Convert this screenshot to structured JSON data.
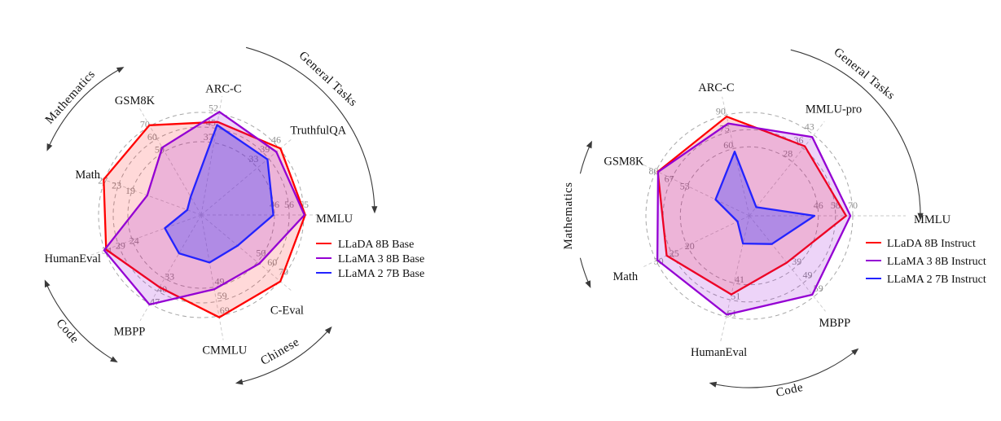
{
  "figure": {
    "description": "Benchmark radar comparison of LLaDA vs LLaMA models"
  },
  "chart_data": [
    {
      "type": "radar",
      "title": "",
      "grid": "dashed",
      "legend_position": "right",
      "ring_fractions": [
        0.7143,
        0.8571,
        1.0
      ],
      "start_angle_deg": 80,
      "angle_step_deg": 40,
      "axes": [
        {
          "label": "ARC-C",
          "max": 52,
          "ticks": [
            37,
            45,
            52
          ]
        },
        {
          "label": "TruthfulQA",
          "max": 46,
          "ticks": [
            33,
            39,
            46
          ]
        },
        {
          "label": "MMLU",
          "max": 65,
          "ticks": [
            46,
            56,
            65
          ]
        },
        {
          "label": "C-Eval",
          "max": 70,
          "ticks": [
            50,
            60,
            70
          ]
        },
        {
          "label": "CMMLU",
          "max": 69,
          "ticks": [
            49,
            59,
            69
          ]
        },
        {
          "label": "MBPP",
          "max": 47,
          "ticks": [
            33,
            40,
            47
          ]
        },
        {
          "label": "HumanEval",
          "max": 34,
          "ticks": [
            24,
            29,
            34
          ]
        },
        {
          "label": "Math",
          "max": 27,
          "ticks": [
            19,
            23,
            27
          ]
        },
        {
          "label": "GSM8K",
          "max": 70,
          "ticks": [
            50,
            60,
            70
          ]
        }
      ],
      "series": [
        {
          "name": "LLaDA 8B Base",
          "color": "#ff0000",
          "fill": "rgba(255,0,0,0.15)",
          "values": [
            47.9,
            46.4,
            65.9,
            70.5,
            69.9,
            38.2,
            33.5,
            27.3,
            70.7
          ]
        },
        {
          "name": "LLaMA 3 8B Base",
          "color": "#9400d3",
          "fill": "rgba(148,0,211,0.17)",
          "values": [
            53.1,
            44.0,
            65.4,
            51.7,
            50.7,
            47.4,
            34.2,
            15.1,
            53.1
          ]
        },
        {
          "name": "LLaMA 2 7B Base",
          "color": "#2323ff",
          "fill": "rgba(64,64,255,0.35)",
          "values": [
            46.3,
            38.8,
            45.7,
            32.5,
            32.5,
            20.3,
            12.8,
            3.9,
            14.3
          ]
        }
      ],
      "groups": [
        {
          "label": "General Tasks",
          "a1": 75,
          "a2": 1,
          "r": 213,
          "arrows": "end",
          "text_deg": 47,
          "text_r": 224
        },
        {
          "label": "Mathematics",
          "a1": 157,
          "a2": 118,
          "r": 205,
          "arrows": "both",
          "text_deg": 138,
          "text_r": 212
        },
        {
          "label": "Code",
          "a1": 203,
          "a2": 240,
          "r": 208,
          "arrows": "both",
          "text_deg": 221,
          "text_r": 222
        },
        {
          "label": "Chinese",
          "a1": -78,
          "a2": -41,
          "r": 211,
          "arrows": "both",
          "text_deg": -60,
          "text_r": 198
        }
      ]
    },
    {
      "type": "radar",
      "title": "",
      "grid": "dashed",
      "legend_position": "right",
      "ring_fractions": [
        0.6667,
        0.8333,
        1.0
      ],
      "start_angle_deg": 102.857,
      "angle_step_deg": 51.4286,
      "axes": [
        {
          "label": "ARC-C",
          "max": 90,
          "ticks": [
            60,
            75,
            90
          ]
        },
        {
          "label": "MMLU-pro",
          "max": 43,
          "ticks": [
            28,
            36,
            43
          ]
        },
        {
          "label": "MMLU",
          "max": 70,
          "ticks": [
            46,
            58,
            70
          ]
        },
        {
          "label": "MBPP",
          "max": 59,
          "ticks": [
            39,
            49,
            59
          ]
        },
        {
          "label": "HumanEval",
          "max": 61,
          "ticks": [
            41,
            51,
            61
          ]
        },
        {
          "label": "Math",
          "max": 30,
          "ticks": [
            20,
            25,
            30
          ]
        },
        {
          "label": "GSM8K",
          "max": 80,
          "ticks": [
            53,
            67,
            80
          ]
        }
      ],
      "series": [
        {
          "name": "LLaDA 8B Instruct",
          "color": "#ff0000",
          "fill": "rgba(255,0,0,0.15)",
          "values": [
            88.5,
            37.0,
            65.5,
            34.2,
            47.6,
            26.6,
            78.6
          ]
        },
        {
          "name": "LLaMA 3 8B Instruct",
          "color": "#9400d3",
          "fill": "rgba(148,0,211,0.17)",
          "values": [
            82.4,
            41.9,
            68.4,
            57.6,
            59.8,
            29.6,
            78.3
          ]
        },
        {
          "name": "LLaMA 2 7B Instruct",
          "color": "#2323ff",
          "fill": "rgba(64,64,255,0.35)",
          "values": [
            57.3,
            4.6,
            44.1,
            20.6,
            16.8,
            3.8,
            29.0
          ]
        }
      ],
      "groups": [
        {
          "label": "General Tasks",
          "a1": 76,
          "a2": -1,
          "r": 210,
          "arrows": "end",
          "text_deg": 51,
          "text_r": 220
        },
        {
          "label": "Mathematics",
          "a1": 155,
          "a2": 204,
          "r": 214,
          "arrows": "both",
          "gap": [
            166,
            194
          ],
          "text_deg": 180,
          "text_r": 218
        },
        {
          "label": "Code",
          "a1": -103,
          "a2": -51,
          "r": 211,
          "arrows": "both",
          "text_deg": -77,
          "text_r": 224
        }
      ]
    }
  ]
}
